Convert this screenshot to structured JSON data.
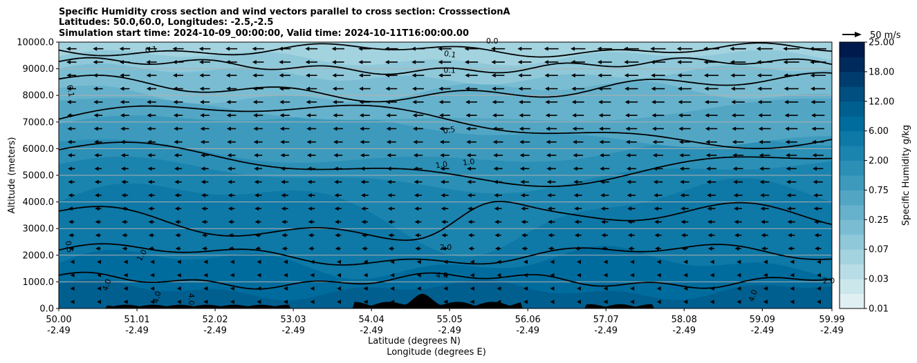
{
  "chart_data": {
    "type": "contour",
    "title_lines": [
      "Specific Humidity cross section and wind vectors parallel to cross section: CrosssectionA",
      "Latitudes: 50.0,60.0, Longitudes: -2.5,-2.5",
      "Simulation start time: 2024-10-09_00:00:00, Valid time: 2024-10-11T16:00:00.00"
    ],
    "xlabel_lat": "Latitude (degrees N)",
    "xlabel_lon": "Longitude (degrees E)",
    "ylabel": "Altitude (meters)",
    "ylim": [
      0,
      10000
    ],
    "xlim": [
      50.0,
      59.99
    ],
    "grid": "horizontal",
    "x_ticks": [
      {
        "lat": "50.00",
        "lon": "-2.49",
        "v": 50.0
      },
      {
        "lat": "51.01",
        "lon": "-2.49",
        "v": 51.01
      },
      {
        "lat": "52.02",
        "lon": "-2.49",
        "v": 52.02
      },
      {
        "lat": "53.03",
        "lon": "-2.49",
        "v": 53.03
      },
      {
        "lat": "54.04",
        "lon": "-2.49",
        "v": 54.04
      },
      {
        "lat": "55.05",
        "lon": "-2.49",
        "v": 55.05
      },
      {
        "lat": "56.06",
        "lon": "-2.49",
        "v": 56.06
      },
      {
        "lat": "57.07",
        "lon": "-2.49",
        "v": 57.07
      },
      {
        "lat": "58.08",
        "lon": "-2.49",
        "v": 58.08
      },
      {
        "lat": "59.09",
        "lon": "-2.49",
        "v": 59.09
      },
      {
        "lat": "59.99",
        "lon": "-2.49",
        "v": 59.99
      }
    ],
    "y_ticks": [
      {
        "label": "0.0",
        "v": 0
      },
      {
        "label": "1000.0",
        "v": 1000
      },
      {
        "label": "2000.0",
        "v": 2000
      },
      {
        "label": "3000.0",
        "v": 3000
      },
      {
        "label": "4000.0",
        "v": 4000
      },
      {
        "label": "5000.0",
        "v": 5000
      },
      {
        "label": "6000.0",
        "v": 6000
      },
      {
        "label": "7000.0",
        "v": 7000
      },
      {
        "label": "8000.0",
        "v": 8000
      },
      {
        "label": "9000.0",
        "v": 9000
      },
      {
        "label": "10000.0",
        "v": 10000
      }
    ],
    "colorbar": {
      "label": "Specific Humidity g/kg",
      "levels": [
        0.01,
        0.02,
        0.03,
        0.05,
        0.07,
        0.1,
        0.25,
        0.5,
        0.75,
        1.0,
        2.0,
        4.0,
        6.0,
        9.0,
        12.0,
        15.0,
        18.0,
        21.0,
        25.0
      ],
      "tick_labels": [
        "0.01",
        "0.03",
        "0.07",
        "0.25",
        "0.75",
        "2.00",
        "6.00",
        "12.00",
        "18.00",
        "25.00"
      ],
      "tick_index": [
        0,
        2,
        4,
        6,
        8,
        10,
        12,
        14,
        16,
        18
      ],
      "colors": [
        "#ffffff",
        "#e0f0f2",
        "#cce7ec",
        "#b8dde6",
        "#a3d3df",
        "#8fc8d9",
        "#7abdd2",
        "#66b1cb",
        "#52a6c4",
        "#3d9abd",
        "#2b8fb6",
        "#1b84ae",
        "#0e78a6",
        "#006c9d",
        "#005f8f",
        "#004f80",
        "#003d6e",
        "#002a5c",
        "#001a4d"
      ]
    },
    "contour_labels": [
      {
        "text": "0.1",
        "x": 51.2,
        "y": 9620,
        "rot": -10
      },
      {
        "text": "0.1",
        "x": 50.12,
        "y": 8150,
        "rot": 80
      },
      {
        "text": "0.0",
        "x": 55.6,
        "y": 9950,
        "rot": 0
      },
      {
        "text": "0.1",
        "x": 55.05,
        "y": 9450,
        "rot": 10
      },
      {
        "text": "0.1",
        "x": 55.05,
        "y": 8850,
        "rot": 0
      },
      {
        "text": "0.5",
        "x": 55.05,
        "y": 6600,
        "rot": -10
      },
      {
        "text": "1.0",
        "x": 54.95,
        "y": 5300,
        "rot": -8
      },
      {
        "text": "1.0",
        "x": 55.3,
        "y": 5400,
        "rot": -8
      },
      {
        "text": "0.5",
        "x": 50.1,
        "y": 2300,
        "rot": 80
      },
      {
        "text": "1.0",
        "x": 51.1,
        "y": 1950,
        "rot": -60
      },
      {
        "text": "2.0",
        "x": 55.0,
        "y": 2200,
        "rot": 0
      },
      {
        "text": "4.0",
        "x": 54.95,
        "y": 1150,
        "rot": 0
      },
      {
        "text": "4.0",
        "x": 50.65,
        "y": 850,
        "rot": -70
      },
      {
        "text": "4.0",
        "x": 51.3,
        "y": 400,
        "rot": -75
      },
      {
        "text": "4.0",
        "x": 51.68,
        "y": 350,
        "rot": 90
      },
      {
        "text": "4.0",
        "x": 59.0,
        "y": 450,
        "rot": -70
      },
      {
        "text": "2.0",
        "x": 59.95,
        "y": 950,
        "rot": 0
      }
    ],
    "wind_reference": {
      "label": "50 m/s",
      "speed": 50
    }
  }
}
